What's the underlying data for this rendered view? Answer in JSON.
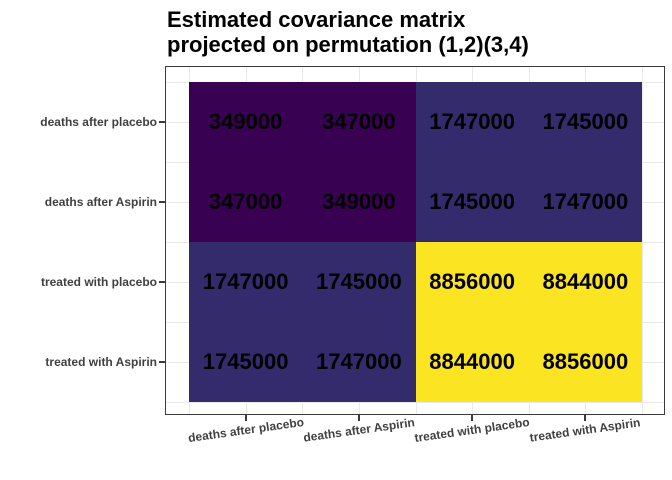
{
  "title": {
    "line1": "Estimated covariance matrix",
    "line2": "projected on permutation (1,2)(3,4)"
  },
  "chart_data": {
    "type": "heatmap",
    "title": "Estimated covariance matrix projected on permutation (1,2)(3,4)",
    "x_categories": [
      "deaths after placebo",
      "deaths after Aspirin",
      "treated with placebo",
      "treated with Aspirin"
    ],
    "y_categories_top_to_bottom": [
      "deaths after placebo",
      "deaths after Aspirin",
      "treated with placebo",
      "treated with Aspirin"
    ],
    "values": [
      [
        349000,
        347000,
        1747000,
        1745000
      ],
      [
        347000,
        349000,
        1745000,
        1747000
      ],
      [
        1747000,
        1745000,
        8856000,
        8844000
      ],
      [
        1745000,
        1747000,
        8844000,
        8856000
      ]
    ],
    "cell_colors": [
      [
        "#380152",
        "#380152",
        "#342B6C",
        "#342B6C"
      ],
      [
        "#380152",
        "#380152",
        "#342B6C",
        "#342B6C"
      ],
      [
        "#342B6C",
        "#342B6C",
        "#FBE422",
        "#FBE422"
      ],
      [
        "#342B6C",
        "#342B6C",
        "#FBE422",
        "#FBE422"
      ]
    ],
    "value_min": 347000,
    "value_max": 8856000,
    "colormap": "viridis",
    "legend_position": "none",
    "grid": "major and minor, light gray",
    "cell_text_color": "#000000",
    "axis_text_color": "#404040",
    "panel_border_color": "#3b3b3b",
    "gridline_color": "#e9e9e9"
  }
}
